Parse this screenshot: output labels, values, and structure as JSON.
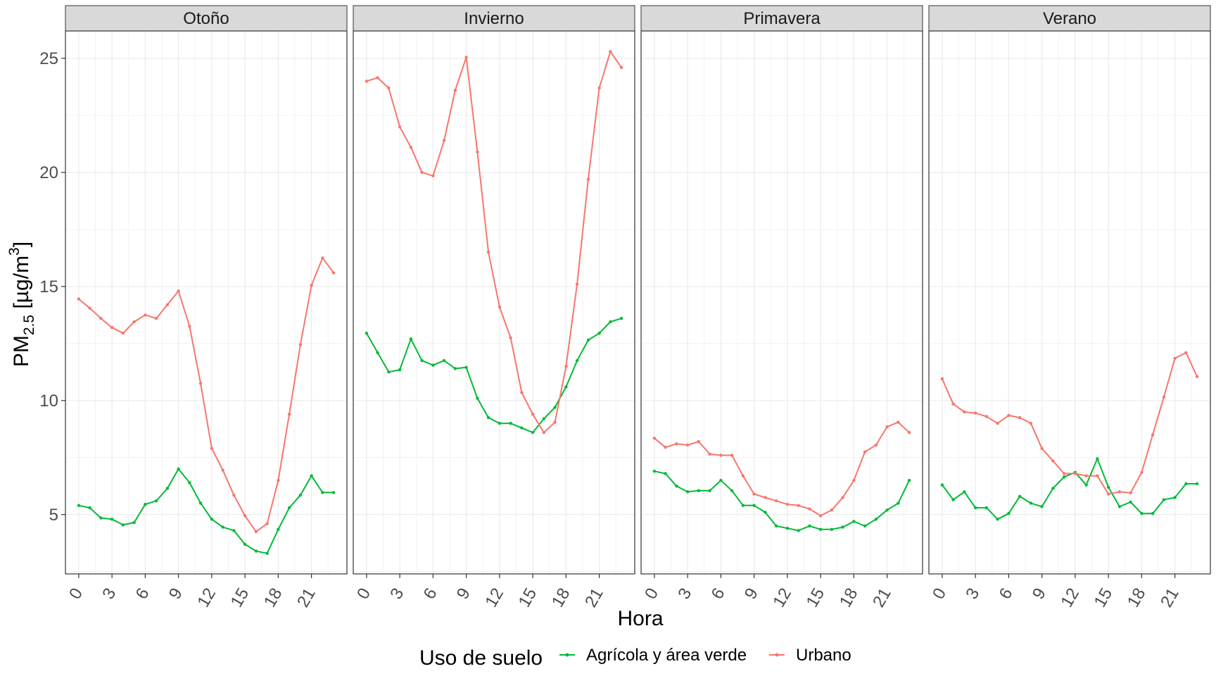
{
  "chart_data": {
    "type": "line",
    "facet_variable": "season",
    "x": [
      0,
      1,
      2,
      3,
      4,
      5,
      6,
      7,
      8,
      9,
      10,
      11,
      12,
      13,
      14,
      15,
      16,
      17,
      18,
      19,
      20,
      21,
      22,
      23
    ],
    "x_ticks": [
      0,
      3,
      6,
      9,
      12,
      15,
      18,
      21
    ],
    "xlim": [
      -1.2,
      24.2
    ],
    "ylim": [
      2.4,
      26.2
    ],
    "y_ticks": [
      5,
      10,
      15,
      20,
      25
    ],
    "xlabel": "Hora",
    "ylabel_main": "PM",
    "ylabel_sub": "2.5",
    "ylabel_unit": " [µg/m",
    "ylabel_sup": "3",
    "ylabel_close": "]",
    "grid": true,
    "legend": {
      "title": "Uso de suelo",
      "position": "bottom",
      "items": [
        {
          "name": "Agrícola y área verde",
          "color": "#00BA38"
        },
        {
          "name": "Urbano",
          "color": "#F8766D"
        }
      ]
    },
    "panels": [
      {
        "title": "Otoño",
        "series": [
          {
            "name": "Agrícola y área verde",
            "color": "#00BA38",
            "values": [
              5.4,
              5.3,
              4.85,
              4.8,
              4.55,
              4.65,
              5.45,
              5.6,
              6.15,
              7.0,
              6.4,
              5.5,
              4.8,
              4.45,
              4.3,
              3.7,
              3.4,
              3.3,
              4.35,
              5.3,
              5.85,
              6.7,
              5.97,
              5.97
            ]
          },
          {
            "name": "Urbano",
            "color": "#F8766D",
            "values": [
              14.45,
              14.05,
              13.6,
              13.2,
              12.95,
              13.45,
              13.75,
              13.6,
              14.2,
              14.8,
              13.25,
              10.75,
              7.9,
              6.95,
              5.85,
              4.95,
              4.25,
              4.6,
              6.5,
              9.4,
              12.45,
              15.05,
              16.25,
              15.6
            ]
          }
        ]
      },
      {
        "title": "Invierno",
        "series": [
          {
            "name": "Agrícola y área verde",
            "color": "#00BA38",
            "values": [
              12.95,
              12.1,
              11.25,
              11.35,
              12.7,
              11.75,
              11.55,
              11.75,
              11.4,
              11.45,
              10.1,
              9.25,
              9.0,
              9.0,
              8.8,
              8.6,
              9.2,
              9.7,
              10.6,
              11.75,
              12.65,
              12.95,
              13.45,
              13.6
            ]
          },
          {
            "name": "Urbano",
            "color": "#F8766D",
            "values": [
              24.0,
              24.15,
              23.7,
              22.0,
              21.1,
              20.0,
              19.85,
              21.4,
              23.6,
              25.05,
              20.9,
              16.5,
              14.1,
              12.75,
              10.35,
              9.4,
              8.6,
              9.05,
              11.5,
              15.1,
              19.7,
              23.7,
              25.3,
              24.6
            ]
          }
        ]
      },
      {
        "title": "Primavera",
        "series": [
          {
            "name": "Agrícola y área verde",
            "color": "#00BA38",
            "values": [
              6.9,
              6.8,
              6.25,
              6.0,
              6.05,
              6.05,
              6.5,
              6.05,
              5.4,
              5.4,
              5.1,
              4.5,
              4.4,
              4.3,
              4.5,
              4.35,
              4.35,
              4.45,
              4.7,
              4.5,
              4.8,
              5.2,
              5.5,
              6.5
            ]
          },
          {
            "name": "Urbano",
            "color": "#F8766D",
            "values": [
              8.35,
              7.95,
              8.1,
              8.05,
              8.2,
              7.65,
              7.6,
              7.6,
              6.7,
              5.9,
              5.75,
              5.6,
              5.45,
              5.4,
              5.25,
              4.95,
              5.2,
              5.75,
              6.5,
              7.75,
              8.05,
              8.85,
              9.05,
              8.6
            ]
          }
        ]
      },
      {
        "title": "Verano",
        "series": [
          {
            "name": "Agrícola y área verde",
            "color": "#00BA38",
            "values": [
              6.3,
              5.65,
              6.0,
              5.3,
              5.3,
              4.8,
              5.05,
              5.8,
              5.5,
              5.35,
              6.15,
              6.65,
              6.85,
              6.3,
              7.45,
              6.2,
              5.35,
              5.55,
              5.05,
              5.05,
              5.65,
              5.75,
              6.35,
              6.35
            ]
          },
          {
            "name": "Urbano",
            "color": "#F8766D",
            "values": [
              10.95,
              9.85,
              9.5,
              9.45,
              9.3,
              9.0,
              9.35,
              9.25,
              9.0,
              7.9,
              7.35,
              6.8,
              6.8,
              6.7,
              6.7,
              5.9,
              6.0,
              5.95,
              6.85,
              8.5,
              10.15,
              11.85,
              12.1,
              11.05
            ]
          }
        ]
      }
    ]
  }
}
